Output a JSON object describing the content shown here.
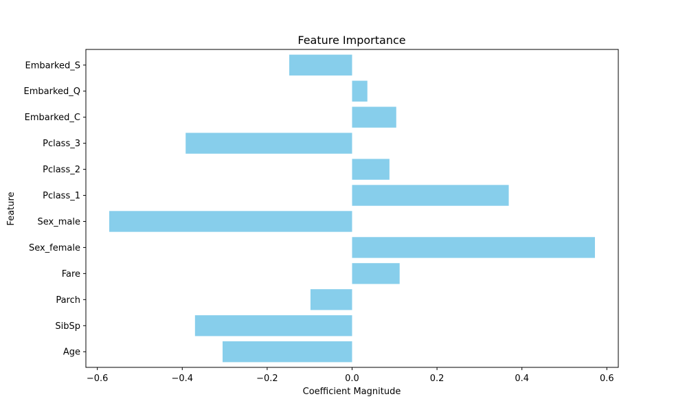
{
  "chart_data": {
    "type": "bar",
    "orientation": "horizontal",
    "title": "Feature Importance",
    "xlabel": "Coefficient Magnitude",
    "ylabel": "Feature",
    "categories": [
      "Age",
      "SibSp",
      "Parch",
      "Fare",
      "Sex_female",
      "Sex_male",
      "Pclass_1",
      "Pclass_2",
      "Pclass_3",
      "Embarked_C",
      "Embarked_Q",
      "Embarked_S"
    ],
    "values": [
      -0.305,
      -0.37,
      -0.098,
      0.112,
      0.572,
      -0.572,
      0.369,
      0.088,
      -0.392,
      0.104,
      0.036,
      -0.148
    ],
    "xlim": [
      -0.627,
      0.627
    ],
    "xticks": [
      -0.6,
      -0.4,
      -0.2,
      0.0,
      0.2,
      0.4,
      0.6
    ],
    "xtick_labels": [
      "−0.6",
      "−0.4",
      "−0.2",
      "0.0",
      "0.2",
      "0.4",
      "0.6"
    ],
    "bar_color": "#87CEEB",
    "grid": false,
    "legend": "none"
  }
}
